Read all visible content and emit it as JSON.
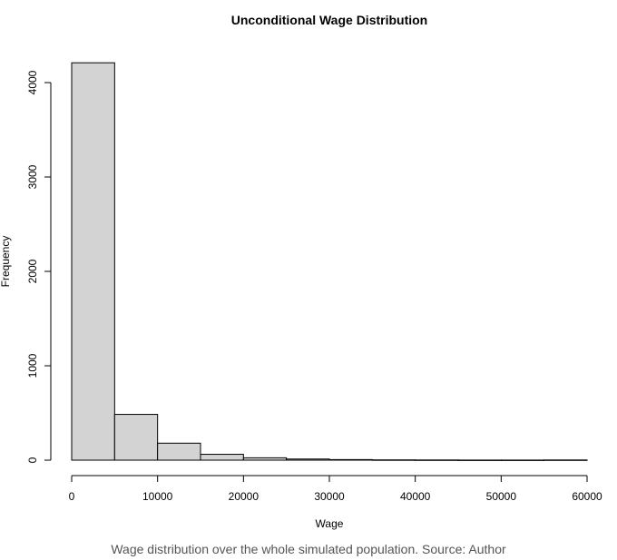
{
  "chart_data": {
    "type": "bar",
    "title": "Unconditional Wage Distribution",
    "xlabel": "Wage",
    "ylabel": "Frequency",
    "xlim": [
      0,
      60000
    ],
    "ylim": [
      0,
      4000
    ],
    "x_ticks": [
      "0",
      "10000",
      "20000",
      "30000",
      "40000",
      "50000",
      "60000"
    ],
    "y_ticks": [
      "0",
      "1000",
      "2000",
      "3000",
      "4000"
    ],
    "bin_width": 5000,
    "bins": [
      {
        "start": 0,
        "end": 5000,
        "count": 4210
      },
      {
        "start": 5000,
        "end": 10000,
        "count": 485
      },
      {
        "start": 10000,
        "end": 15000,
        "count": 180
      },
      {
        "start": 15000,
        "end": 20000,
        "count": 62
      },
      {
        "start": 20000,
        "end": 25000,
        "count": 25
      },
      {
        "start": 25000,
        "end": 30000,
        "count": 12
      },
      {
        "start": 30000,
        "end": 35000,
        "count": 6
      },
      {
        "start": 35000,
        "end": 40000,
        "count": 3
      },
      {
        "start": 40000,
        "end": 45000,
        "count": 2
      },
      {
        "start": 45000,
        "end": 50000,
        "count": 1
      },
      {
        "start": 50000,
        "end": 55000,
        "count": 1
      },
      {
        "start": 55000,
        "end": 60000,
        "count": 2
      }
    ],
    "bar_fill": "#d3d3d3",
    "bar_stroke": "#000000",
    "grid": false
  },
  "caption": "Wage distribution over the whole simulated population. Source: Author"
}
